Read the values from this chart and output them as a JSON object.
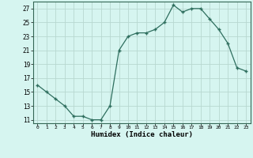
{
  "x": [
    0,
    1,
    2,
    3,
    4,
    5,
    6,
    7,
    8,
    9,
    10,
    11,
    12,
    13,
    14,
    15,
    16,
    17,
    18,
    19,
    20,
    21,
    22,
    23
  ],
  "y": [
    16,
    15,
    14,
    13,
    11.5,
    11.5,
    11,
    11,
    13,
    21,
    23,
    23.5,
    23.5,
    24,
    25,
    27.5,
    26.5,
    27,
    27,
    25.5,
    24,
    22,
    18.5,
    18
  ],
  "line_color": "#2e6e5e",
  "marker": "+",
  "bg_color": "#d6f5f0",
  "grid_color": "#b8d8d0",
  "xlabel": "Humidex (Indice chaleur)",
  "xlim": [
    -0.5,
    23.5
  ],
  "ylim": [
    10.5,
    28
  ],
  "yticks": [
    11,
    13,
    15,
    17,
    19,
    21,
    23,
    25,
    27
  ],
  "xticks": [
    0,
    1,
    2,
    3,
    4,
    5,
    6,
    7,
    8,
    9,
    10,
    11,
    12,
    13,
    14,
    15,
    16,
    17,
    18,
    19,
    20,
    21,
    22,
    23
  ]
}
